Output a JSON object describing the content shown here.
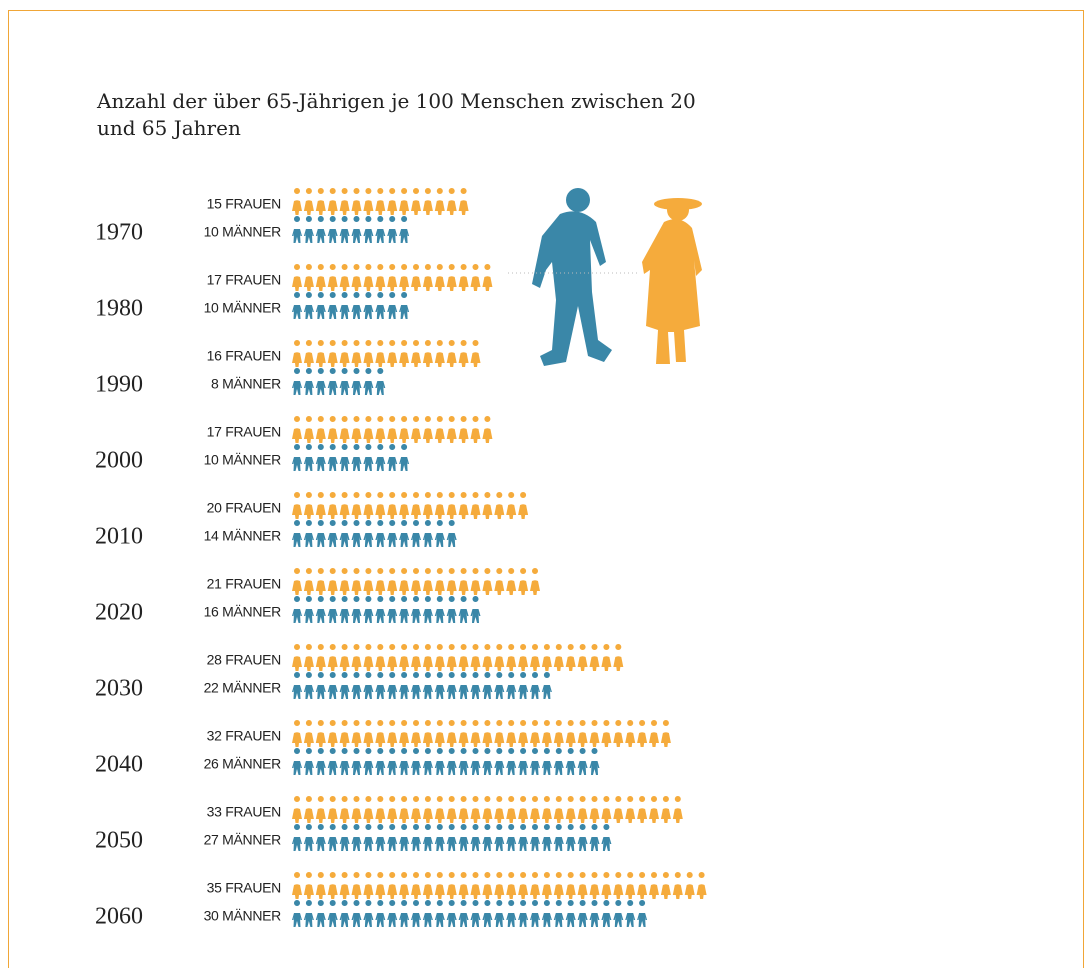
{
  "chart_data": {
    "type": "pictogram",
    "title": "Anzahl der über 65-Jährigen je 100 Menschen zwischen 20 und 65 Jahren",
    "categories": [
      "1970",
      "1980",
      "1990",
      "2000",
      "2010",
      "2020",
      "2030",
      "2040",
      "2050",
      "2060"
    ],
    "series": [
      {
        "color": "#f5ab3c",
        "values": [
          15,
          17,
          16,
          17,
          20,
          21,
          28,
          32,
          33,
          35
        ],
        "value_labels": [
          "15 FRAUEN",
          "17 FRAUEN",
          "16 FRAUEN",
          "17 FRAUEN",
          "20 FRAUEN",
          "21 FRAUEN",
          "28 FRAUEN",
          "32 FRAUEN",
          "33 FRAUEN",
          "35 FRAUEN"
        ]
      },
      {
        "color": "#3a87a8",
        "values": [
          10,
          10,
          8,
          10,
          14,
          16,
          22,
          26,
          27,
          30
        ],
        "value_labels": [
          "10 MÄNNER",
          "10 MÄNNER",
          "8 MÄNNER",
          "10 MÄNNER",
          "14 MÄNNER",
          "16 MÄNNER",
          "22 MÄNNER",
          "26 MÄNNER",
          "27 MÄNNER",
          "30 MÄNNER"
        ]
      }
    ]
  }
}
